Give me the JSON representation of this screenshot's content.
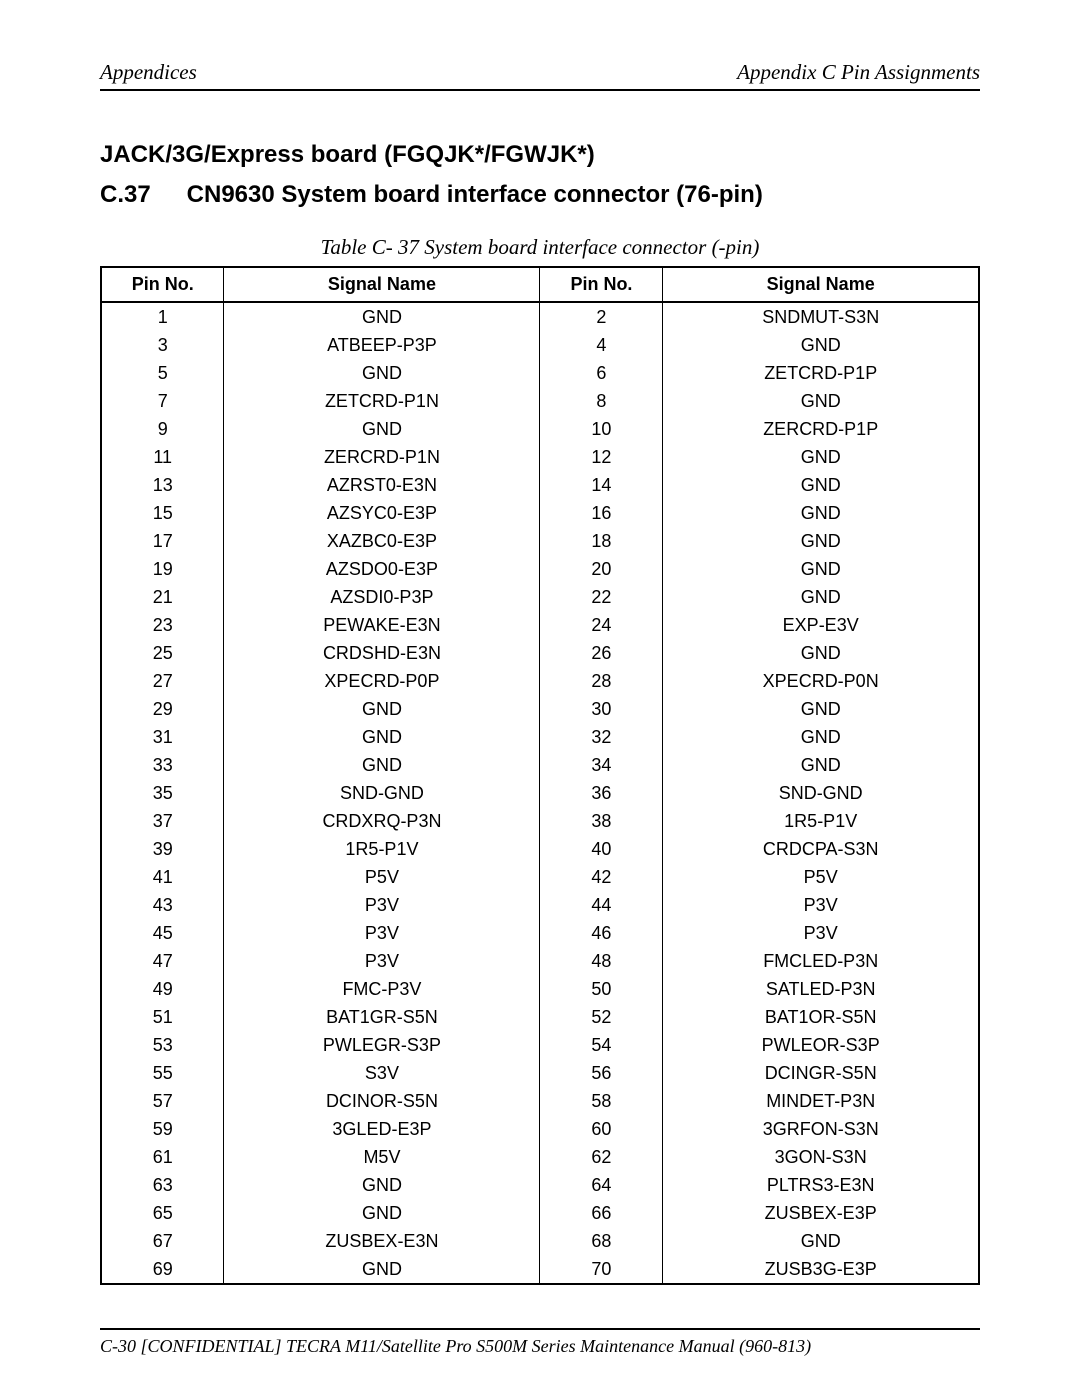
{
  "header": {
    "left": "Appendices",
    "right": "Appendix C  Pin Assignments"
  },
  "headings": {
    "board": "JACK/3G/Express board (FGQJK*/FGWJK*)",
    "section_label": "C.37",
    "section_title": "CN9630 System board interface connector (76-pin)"
  },
  "table": {
    "caption": "Table C- 37 System board interface connector (-pin)",
    "columns": [
      "Pin No.",
      "Signal Name",
      "Pin No.",
      "Signal Name"
    ],
    "col_widths_pct": [
      14,
      36,
      14,
      36
    ],
    "border_color": "#000000",
    "font_size_header": 18,
    "font_size_cell": 18,
    "rows": [
      [
        "1",
        "GND",
        "2",
        "SNDMUT-S3N"
      ],
      [
        "3",
        "ATBEEP-P3P",
        "4",
        "GND"
      ],
      [
        "5",
        "GND",
        "6",
        "ZETCRD-P1P"
      ],
      [
        "7",
        "ZETCRD-P1N",
        "8",
        "GND"
      ],
      [
        "9",
        "GND",
        "10",
        "ZERCRD-P1P"
      ],
      [
        "11",
        "ZERCRD-P1N",
        "12",
        "GND"
      ],
      [
        "13",
        "AZRST0-E3N",
        "14",
        "GND"
      ],
      [
        "15",
        "AZSYC0-E3P",
        "16",
        "GND"
      ],
      [
        "17",
        "XAZBC0-E3P",
        "18",
        "GND"
      ],
      [
        "19",
        "AZSDO0-E3P",
        "20",
        "GND"
      ],
      [
        "21",
        "AZSDI0-P3P",
        "22",
        "GND"
      ],
      [
        "23",
        "PEWAKE-E3N",
        "24",
        "EXP-E3V"
      ],
      [
        "25",
        "CRDSHD-E3N",
        "26",
        "GND"
      ],
      [
        "27",
        "XPECRD-P0P",
        "28",
        "XPECRD-P0N"
      ],
      [
        "29",
        "GND",
        "30",
        "GND"
      ],
      [
        "31",
        "GND",
        "32",
        "GND"
      ],
      [
        "33",
        "GND",
        "34",
        "GND"
      ],
      [
        "35",
        "SND-GND",
        "36",
        "SND-GND"
      ],
      [
        "37",
        "CRDXRQ-P3N",
        "38",
        "1R5-P1V"
      ],
      [
        "39",
        "1R5-P1V",
        "40",
        "CRDCPA-S3N"
      ],
      [
        "41",
        "P5V",
        "42",
        "P5V"
      ],
      [
        "43",
        "P3V",
        "44",
        "P3V"
      ],
      [
        "45",
        "P3V",
        "46",
        "P3V"
      ],
      [
        "47",
        "P3V",
        "48",
        "FMCLED-P3N"
      ],
      [
        "49",
        "FMC-P3V",
        "50",
        "SATLED-P3N"
      ],
      [
        "51",
        "BAT1GR-S5N",
        "52",
        "BAT1OR-S5N"
      ],
      [
        "53",
        "PWLEGR-S3P",
        "54",
        "PWLEOR-S3P"
      ],
      [
        "55",
        "S3V",
        "56",
        "DCINGR-S5N"
      ],
      [
        "57",
        "DCINOR-S5N",
        "58",
        "MINDET-P3N"
      ],
      [
        "59",
        "3GLED-E3P",
        "60",
        "3GRFON-S3N"
      ],
      [
        "61",
        "M5V",
        "62",
        "3GON-S3N"
      ],
      [
        "63",
        "GND",
        "64",
        "PLTRS3-E3N"
      ],
      [
        "65",
        "GND",
        "66",
        "ZUSBEX-E3P"
      ],
      [
        "67",
        "ZUSBEX-E3N",
        "68",
        "GND"
      ],
      [
        "69",
        "GND",
        "70",
        "ZUSB3G-E3P"
      ]
    ]
  },
  "footer": {
    "text": "C-30 [CONFIDENTIAL] TECRA M11/Satellite Pro S500M Series Maintenance Manual (960-813)"
  },
  "style": {
    "page_bg": "#ffffff",
    "text_color": "#000000",
    "rule_color": "#000000"
  }
}
